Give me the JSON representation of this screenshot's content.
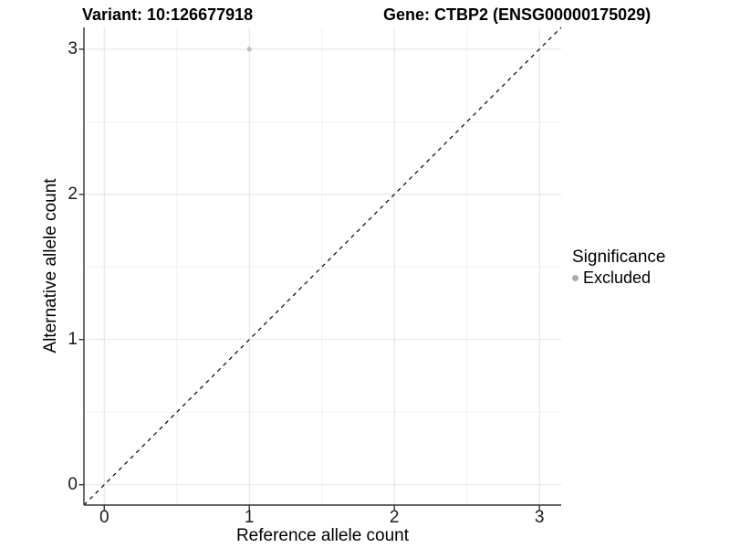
{
  "chart_data": {
    "type": "scatter",
    "title_left": "Variant: 10:126677918",
    "title_right": "Gene: CTBP2 (ENSG00000175029)",
    "xlabel": "Reference allele count",
    "ylabel": "Alternative allele count",
    "xlim": [
      -0.14,
      3.15
    ],
    "ylim": [
      -0.14,
      3.15
    ],
    "x_ticks": [
      0,
      1,
      2,
      3
    ],
    "y_ticks": [
      0,
      1,
      2,
      3
    ],
    "x_minor_ticks": [
      0.5,
      1.5,
      2.5
    ],
    "y_minor_ticks": [
      0.5,
      1.5,
      2.5
    ],
    "grid": true,
    "points": [
      {
        "x": 1,
        "y": 3,
        "significance": "Excluded"
      }
    ],
    "reference_line": {
      "kind": "identity y=x",
      "style": "dashed",
      "color": "#000000"
    },
    "legend": {
      "title": "Significance",
      "position": "right",
      "items": [
        {
          "label": "Excluded",
          "color": "#adadad",
          "marker": "circle"
        }
      ]
    },
    "colors": {
      "background": "#ffffff",
      "point": "#bdbdbd",
      "grid_major": "#e3e3e3",
      "grid_minor": "#f1f1f1",
      "axis_line": "#333333",
      "text": "#000000"
    }
  }
}
